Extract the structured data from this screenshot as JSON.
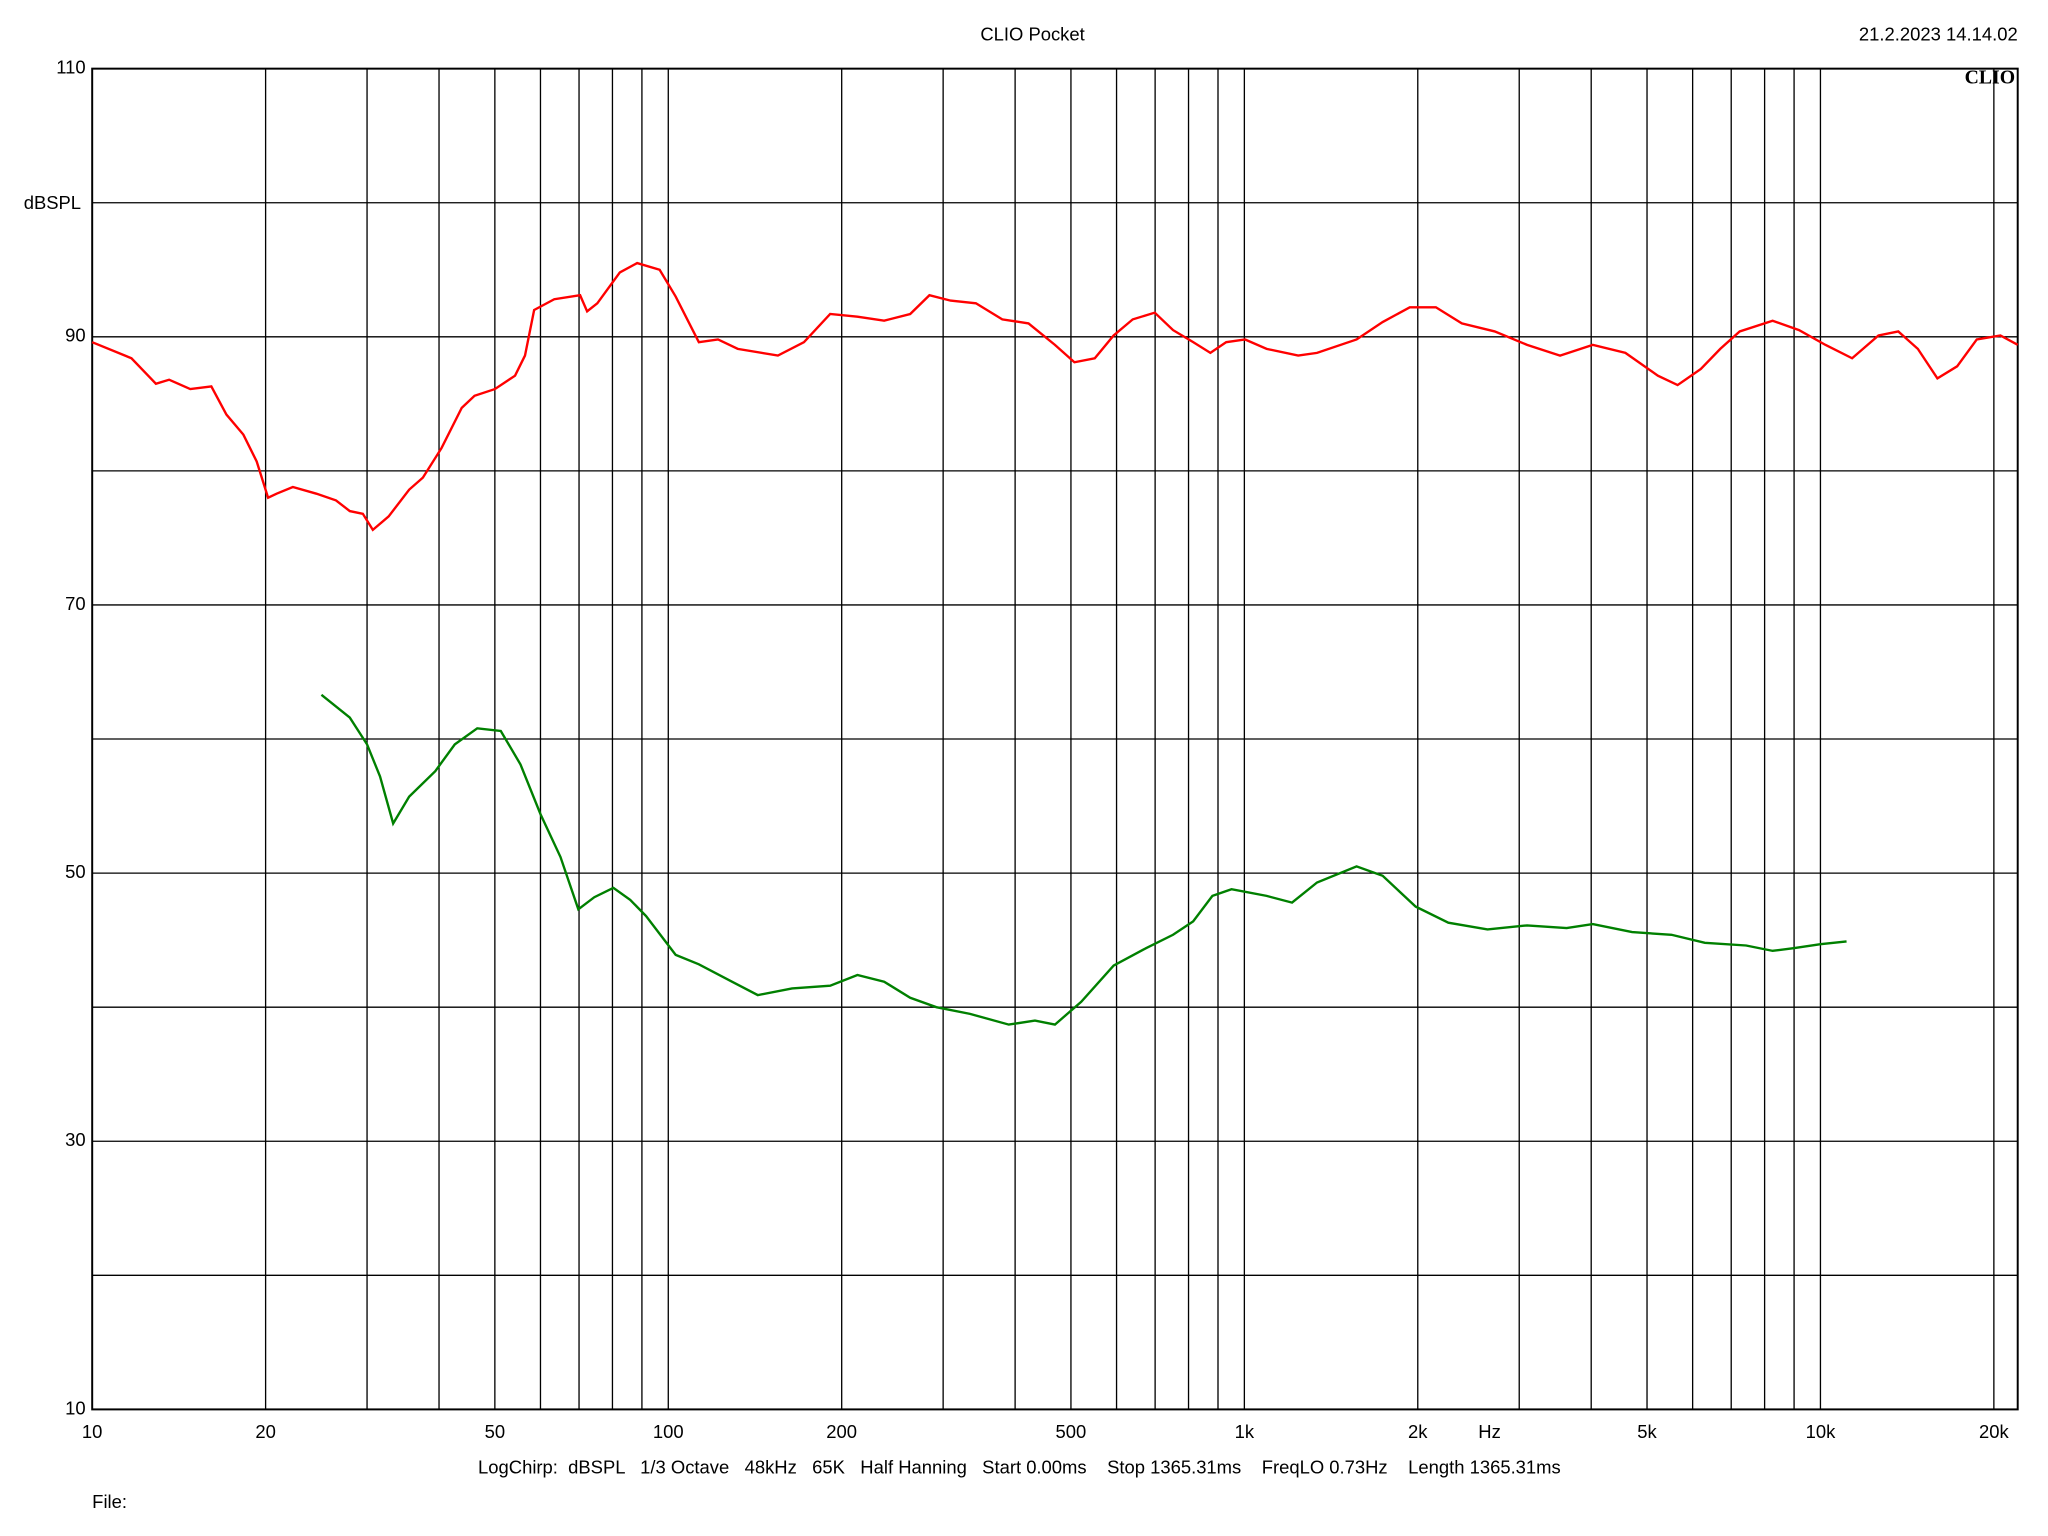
{
  "chart_data": {
    "type": "line",
    "title": "CLIO Pocket",
    "timestamp": "21.2.2023 14.14.02",
    "brand": "CLIO",
    "ylabel": "dBSPL",
    "xlabel": "Hz",
    "footer": "LogChirp:  dBSPL   1/3 Octave   48kHz   65K   Half Hanning   Start 0.00ms    Stop 1365.31ms    FreqLO 0.73Hz    Length 1365.31ms",
    "file_label": "File:",
    "xscale": "log",
    "xlim": [
      10,
      22000
    ],
    "ylim": [
      10,
      110
    ],
    "xticks": [
      10,
      20,
      50,
      100,
      200,
      500,
      {
        "value": 1000,
        "label": "1k"
      },
      {
        "value": 2000,
        "label": "2k"
      },
      {
        "value": 5000,
        "label": "5k"
      },
      {
        "value": 10000,
        "label": "10k"
      },
      {
        "value": 20000,
        "label": "20k"
      }
    ],
    "xgrid": [
      30,
      40,
      60,
      70,
      80,
      90,
      300,
      400,
      600,
      700,
      800,
      900,
      3000,
      4000,
      6000,
      7000,
      8000,
      9000
    ],
    "yticks": [
      10,
      30,
      50,
      70,
      90,
      110
    ],
    "ygrid": [
      20,
      40,
      60,
      80,
      100
    ],
    "grid": true,
    "series": [
      {
        "color": "#ff0000",
        "x": [
          10,
          11.7,
          12.9,
          13.6,
          14.8,
          16.1,
          17.1,
          18.3,
          19.3,
          20.2,
          20.9,
          22.3,
          24.5,
          26.5,
          28,
          29.5,
          30.7,
          32.7,
          35.5,
          37.5,
          40.4,
          43.8,
          46.1,
          50,
          54.2,
          56.4,
          58.5,
          63.4,
          70.3,
          72.3,
          75.3,
          82.4,
          88.3,
          96.6,
          103,
          113,
          122,
          132,
          155,
          172,
          191,
          213,
          237,
          263,
          284,
          309,
          342,
          380,
          422,
          469,
          507,
          550,
          593,
          640,
          699,
          752,
          815,
          873,
          930,
          1003,
          1093,
          1240,
          1337,
          1566,
          1738,
          1937,
          2150,
          2385,
          2720,
          3096,
          3532,
          4025,
          4586,
          5222,
          5650,
          6200,
          6700,
          7240,
          8260,
          9180,
          10200,
          11350,
          12610,
          13650,
          14760,
          15960,
          17270,
          18680,
          20530,
          22000
        ],
        "values": [
          89.6,
          88.4,
          86.5,
          86.8,
          86.1,
          86.3,
          84.2,
          82.7,
          80.7,
          78.0,
          78.3,
          78.8,
          78.3,
          77.8,
          77.0,
          76.8,
          75.6,
          76.6,
          78.6,
          79.5,
          81.7,
          84.7,
          85.6,
          86.1,
          87.1,
          88.6,
          92.0,
          92.8,
          93.1,
          91.9,
          92.5,
          94.8,
          95.5,
          95.0,
          93.0,
          89.6,
          89.8,
          89.1,
          88.6,
          89.6,
          91.7,
          91.5,
          91.2,
          91.7,
          93.1,
          92.7,
          92.5,
          91.3,
          91.0,
          89.4,
          88.1,
          88.4,
          90.1,
          91.3,
          91.8,
          90.5,
          89.6,
          88.8,
          89.6,
          89.8,
          89.1,
          88.6,
          88.8,
          89.8,
          91.1,
          92.2,
          92.2,
          91.0,
          90.4,
          89.4,
          88.6,
          89.4,
          88.8,
          87.1,
          86.4,
          87.6,
          89.1,
          90.4,
          91.2,
          90.5,
          89.4,
          88.4,
          90.1,
          90.4,
          89.1,
          86.9,
          87.8,
          89.8,
          90.1,
          89.4
        ]
      },
      {
        "color": "#008000",
        "x": [
          25,
          28,
          30,
          31.6,
          33.3,
          35.5,
          39.4,
          42.6,
          46.6,
          51.2,
          55.4,
          60,
          65,
          69.8,
          74.4,
          80.3,
          85.9,
          91.5,
          103,
          113,
          129,
          143,
          164,
          191,
          213,
          237,
          263,
          292,
          334,
          390,
          433,
          469,
          521,
          593,
          675,
          752,
          815,
          880,
          950,
          1093,
          1210,
          1337,
          1566,
          1738,
          1983,
          2260,
          2643,
          3096,
          3626,
          4025,
          4710,
          5513,
          6300,
          7430,
          8260,
          8980,
          10000,
          11100
        ],
        "values": [
          63.3,
          61.6,
          59.6,
          57.2,
          53.7,
          55.7,
          57.6,
          59.6,
          60.8,
          60.6,
          58.1,
          54.4,
          51.2,
          47.3,
          48.2,
          48.9,
          48.0,
          46.8,
          43.9,
          43.2,
          41.9,
          40.9,
          41.4,
          41.6,
          42.4,
          41.9,
          40.7,
          40.0,
          39.5,
          38.7,
          39.0,
          38.7,
          40.4,
          43.1,
          44.4,
          45.4,
          46.4,
          48.3,
          48.8,
          48.3,
          47.8,
          49.3,
          50.5,
          49.8,
          47.5,
          46.3,
          45.8,
          46.1,
          45.9,
          46.2,
          45.6,
          45.4,
          44.8,
          44.6,
          44.2,
          44.4,
          44.7,
          44.9
        ]
      }
    ]
  }
}
